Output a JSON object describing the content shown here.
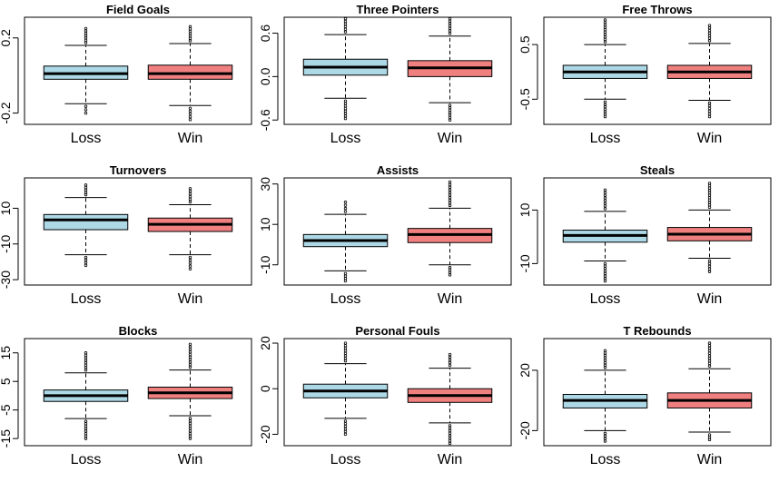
{
  "colors": {
    "loss": "#add8e6",
    "win": "#f08080",
    "ink": "#000000",
    "background": "#ffffff"
  },
  "chart_data": [
    {
      "type": "boxplot",
      "title": "Field Goals",
      "categories": [
        "Loss",
        "Win"
      ],
      "yticks": [
        -0.2,
        0.2
      ],
      "ytick_labels": [
        "-0.2",
        "0.2"
      ],
      "ylim": [
        -0.26,
        0.31
      ],
      "grid": false,
      "boxes": [
        {
          "name": "Loss",
          "color": "#add8e6",
          "q1": -0.02,
          "median": 0.01,
          "q3": 0.05,
          "whisker_low": -0.15,
          "whisker_high": 0.16,
          "outlier_low": -0.2,
          "outlier_high": 0.25
        },
        {
          "name": "Win",
          "color": "#f08080",
          "q1": -0.02,
          "median": 0.01,
          "q3": 0.055,
          "whisker_low": -0.16,
          "whisker_high": 0.17,
          "outlier_low": -0.235,
          "outlier_high": 0.26
        }
      ]
    },
    {
      "type": "boxplot",
      "title": "Three Pointers",
      "categories": [
        "Loss",
        "Win"
      ],
      "yticks": [
        -0.6,
        0.0,
        0.6
      ],
      "ytick_labels": [
        "-0.6",
        "0.0",
        "0.6"
      ],
      "ylim": [
        -0.66,
        0.82
      ],
      "grid": false,
      "boxes": [
        {
          "name": "Loss",
          "color": "#add8e6",
          "q1": 0.02,
          "median": 0.13,
          "q3": 0.24,
          "whisker_low": -0.3,
          "whisker_high": 0.58,
          "outlier_low": -0.58,
          "outlier_high": 0.8
        },
        {
          "name": "Win",
          "color": "#f08080",
          "q1": 0.0,
          "median": 0.12,
          "q3": 0.22,
          "whisker_low": -0.36,
          "whisker_high": 0.56,
          "outlier_low": -0.6,
          "outlier_high": 0.8
        }
      ]
    },
    {
      "type": "boxplot",
      "title": "Free Throws",
      "categories": [
        "Loss",
        "Win"
      ],
      "yticks": [
        -0.5,
        0.5
      ],
      "ytick_labels": [
        "-0.5",
        "0.5"
      ],
      "ylim": [
        -0.96,
        1.0
      ],
      "grid": false,
      "boxes": [
        {
          "name": "Loss",
          "color": "#add8e6",
          "q1": -0.12,
          "median": 0.0,
          "q3": 0.12,
          "whisker_low": -0.5,
          "whisker_high": 0.5,
          "outlier_low": -0.82,
          "outlier_high": 0.95
        },
        {
          "name": "Win",
          "color": "#f08080",
          "q1": -0.12,
          "median": 0.0,
          "q3": 0.12,
          "whisker_low": -0.52,
          "whisker_high": 0.52,
          "outlier_low": -0.82,
          "outlier_high": 0.85
        }
      ]
    },
    {
      "type": "boxplot",
      "title": "Turnovers",
      "categories": [
        "Loss",
        "Win"
      ],
      "yticks": [
        -30,
        -10,
        10
      ],
      "ytick_labels": [
        "-30",
        "-10",
        "10"
      ],
      "ylim": [
        -33,
        27
      ],
      "grid": false,
      "boxes": [
        {
          "name": "Loss",
          "color": "#add8e6",
          "q1": -2,
          "median": 3.5,
          "q3": 6.5,
          "whisker_low": -16,
          "whisker_high": 16,
          "outlier_low": -22,
          "outlier_high": 23
        },
        {
          "name": "Win",
          "color": "#f08080",
          "q1": -3,
          "median": 1,
          "q3": 4.5,
          "whisker_low": -16,
          "whisker_high": 12,
          "outlier_low": -24,
          "outlier_high": 21
        }
      ]
    },
    {
      "type": "boxplot",
      "title": "Assists",
      "categories": [
        "Loss",
        "Win"
      ],
      "yticks": [
        -10,
        10,
        30
      ],
      "ytick_labels": [
        "-10",
        "10",
        "30"
      ],
      "ylim": [
        -20,
        33
      ],
      "grid": false,
      "boxes": [
        {
          "name": "Loss",
          "color": "#add8e6",
          "q1": -1,
          "median": 2,
          "q3": 5,
          "whisker_low": -13,
          "whisker_high": 15,
          "outlier_low": -18,
          "outlier_high": 21
        },
        {
          "name": "Win",
          "color": "#f08080",
          "q1": 1,
          "median": 5,
          "q3": 8,
          "whisker_low": -10,
          "whisker_high": 18,
          "outlier_low": -15,
          "outlier_high": 31
        }
      ]
    },
    {
      "type": "boxplot",
      "title": "Steals",
      "categories": [
        "Loss",
        "Win"
      ],
      "yticks": [
        -10,
        10
      ],
      "ytick_labels": [
        "-10",
        "10"
      ],
      "ylim": [
        -18,
        22
      ],
      "grid": false,
      "boxes": [
        {
          "name": "Loss",
          "color": "#add8e6",
          "q1": -2,
          "median": 0.5,
          "q3": 2.5,
          "whisker_low": -9,
          "whisker_high": 9.5,
          "outlier_low": -16.5,
          "outlier_high": 17.5
        },
        {
          "name": "Win",
          "color": "#f08080",
          "q1": -1.5,
          "median": 1,
          "q3": 3.5,
          "whisker_low": -8,
          "whisker_high": 10,
          "outlier_low": -13,
          "outlier_high": 20
        }
      ]
    },
    {
      "type": "boxplot",
      "title": "Blocks",
      "categories": [
        "Loss",
        "Win"
      ],
      "yticks": [
        -15,
        -5,
        5,
        15
      ],
      "ytick_labels": [
        "-15",
        "-5",
        "5",
        "15"
      ],
      "ylim": [
        -17.5,
        20
      ],
      "grid": false,
      "boxes": [
        {
          "name": "Loss",
          "color": "#add8e6",
          "q1": -2,
          "median": 0,
          "q3": 2,
          "whisker_low": -8,
          "whisker_high": 8,
          "outlier_low": -15,
          "outlier_high": 15
        },
        {
          "name": "Win",
          "color": "#f08080",
          "q1": -1,
          "median": 1,
          "q3": 3,
          "whisker_low": -7,
          "whisker_high": 9,
          "outlier_low": -15,
          "outlier_high": 18
        }
      ]
    },
    {
      "type": "boxplot",
      "title": "Personal Fouls",
      "categories": [
        "Loss",
        "Win"
      ],
      "yticks": [
        -20,
        0,
        20
      ],
      "ytick_labels": [
        "-20",
        "0",
        "20"
      ],
      "ylim": [
        -25,
        22
      ],
      "grid": false,
      "boxes": [
        {
          "name": "Loss",
          "color": "#add8e6",
          "q1": -4,
          "median": -1,
          "q3": 2,
          "whisker_low": -13,
          "whisker_high": 11,
          "outlier_low": -20,
          "outlier_high": 20
        },
        {
          "name": "Win",
          "color": "#f08080",
          "q1": -6,
          "median": -3,
          "q3": 0,
          "whisker_low": -15,
          "whisker_high": 9,
          "outlier_low": -24,
          "outlier_high": 15
        }
      ]
    },
    {
      "type": "boxplot",
      "title": "T Rebounds",
      "categories": [
        "Loss",
        "Win"
      ],
      "yticks": [
        -20,
        20
      ],
      "ytick_labels": [
        "-20",
        "20"
      ],
      "ylim": [
        -30,
        41
      ],
      "grid": false,
      "boxes": [
        {
          "name": "Loss",
          "color": "#add8e6",
          "q1": -5,
          "median": 0,
          "q3": 4,
          "whisker_low": -20,
          "whisker_high": 20,
          "outlier_low": -27,
          "outlier_high": 33
        },
        {
          "name": "Win",
          "color": "#f08080",
          "q1": -5,
          "median": 0,
          "q3": 5,
          "whisker_low": -21,
          "whisker_high": 21,
          "outlier_low": -26,
          "outlier_high": 38
        }
      ]
    }
  ]
}
